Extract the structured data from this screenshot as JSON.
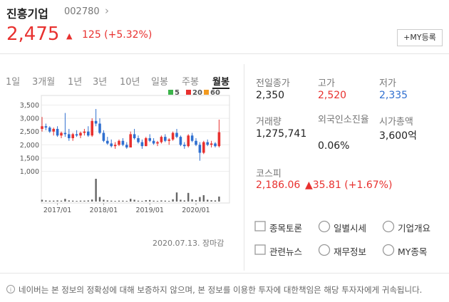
{
  "header": {
    "name": "진흥기업",
    "code": "002780",
    "arrow": "›"
  },
  "price": {
    "current": "2,475",
    "change_sign": "▲",
    "change": "125 (+5.32%)"
  },
  "my_button": "+MY등록",
  "tabs": {
    "items": [
      "1일",
      "3개월",
      "1년",
      "3년",
      "10년",
      "일봉",
      "주봉",
      "월봉"
    ],
    "active": 7
  },
  "chart_data": {
    "type": "candlestick",
    "legend": [
      {
        "name": "5",
        "color": "#3cb44b"
      },
      {
        "name": "20",
        "color": "#e8312f"
      },
      {
        "name": "60",
        "color": "#f29a1f"
      }
    ],
    "up_color": "#e8312f",
    "down_color": "#2f6fd0",
    "ylim": [
      800,
      3700
    ],
    "yticks": [
      {
        "value": 1000,
        "label": "1,000"
      },
      {
        "value": 1500,
        "label": "1,500"
      },
      {
        "value": 2000,
        "label": "2,000"
      },
      {
        "value": 2500,
        "label": "2,500"
      },
      {
        "value": 3000,
        "label": "3,000"
      },
      {
        "value": 3500,
        "label": "3,500"
      }
    ],
    "grid": true,
    "categories": [
      null,
      null,
      null,
      null,
      "2017/01",
      null,
      null,
      null,
      null,
      null,
      null,
      null,
      null,
      null,
      null,
      null,
      "2018/01",
      null,
      null,
      null,
      null,
      null,
      null,
      null,
      null,
      null,
      null,
      null,
      "2019/01",
      null,
      null,
      null,
      null,
      null,
      null,
      null,
      null,
      null,
      null,
      null,
      "2020/01",
      null,
      null,
      null,
      null,
      null,
      null
    ],
    "open": [
      2600,
      2700,
      2650,
      2500,
      2600,
      2350,
      2450,
      2400,
      2250,
      2400,
      2350,
      2450,
      2500,
      2350,
      2900,
      2800,
      2450,
      2150,
      2050,
      1950,
      2000,
      2150,
      2000,
      1900,
      2400,
      2250,
      2100,
      1950,
      2250,
      2150,
      2050,
      2100,
      2300,
      2150,
      2200,
      2450,
      2300,
      2000,
      1950,
      2350,
      2150,
      2000,
      1700,
      2100,
      2000,
      2050,
      1950
    ],
    "high": [
      3050,
      2800,
      2700,
      2650,
      2700,
      2500,
      3200,
      2600,
      2450,
      2550,
      2500,
      2600,
      2700,
      3000,
      3350,
      3000,
      2550,
      2300,
      2200,
      2100,
      2200,
      2250,
      2100,
      2500,
      2600,
      2350,
      2200,
      2300,
      2400,
      2250,
      2150,
      2350,
      2400,
      2250,
      2500,
      2600,
      2350,
      2100,
      2400,
      2450,
      2250,
      2100,
      2150,
      2200,
      2150,
      2100,
      2950
    ],
    "low": [
      2500,
      2550,
      2450,
      2350,
      2300,
      2250,
      2300,
      2150,
      2150,
      2300,
      2250,
      2350,
      2300,
      2300,
      2700,
      2400,
      2100,
      2000,
      1900,
      1850,
      1950,
      1950,
      1850,
      1900,
      2200,
      2050,
      1850,
      1950,
      2100,
      2000,
      1950,
      2050,
      2100,
      2000,
      2150,
      2250,
      1950,
      1850,
      1900,
      2100,
      1950,
      1400,
      1650,
      1950,
      1900,
      1900,
      1900
    ],
    "close": [
      2700,
      2650,
      2500,
      2600,
      2350,
      2450,
      2400,
      2250,
      2400,
      2350,
      2450,
      2500,
      2350,
      2900,
      2800,
      2450,
      2150,
      2050,
      1950,
      2000,
      2150,
      2000,
      1900,
      2400,
      2250,
      2100,
      1950,
      2250,
      2150,
      2050,
      2100,
      2300,
      2150,
      2200,
      2450,
      2300,
      2000,
      1950,
      2350,
      2150,
      2000,
      1700,
      2100,
      2000,
      2050,
      1950,
      2475
    ],
    "volume": [
      8,
      5,
      4,
      4,
      5,
      4,
      12,
      5,
      4,
      3,
      4,
      4,
      5,
      9,
      100,
      20,
      8,
      5,
      4,
      3,
      4,
      4,
      3,
      12,
      8,
      4,
      3,
      6,
      7,
      4,
      3,
      5,
      4,
      3,
      10,
      40,
      8,
      5,
      38,
      10,
      6,
      20,
      28,
      8,
      6,
      5,
      22
    ],
    "date_note": "2020.07.13. 장마감"
  },
  "stats": [
    {
      "label": "전일종가",
      "value": "2,350",
      "tone": "plain"
    },
    {
      "label": "고가",
      "value": "2,520",
      "tone": "up"
    },
    {
      "label": "저가",
      "value": "2,335",
      "tone": "down"
    },
    {
      "label": "거래량",
      "value": "1,275,741",
      "tone": "plain"
    },
    {
      "label": "외국인소진율",
      "value": "0.06%",
      "tone": "plain"
    },
    {
      "label": "시가총액",
      "value": "3,600억",
      "tone": "plain"
    }
  ],
  "index": {
    "label": "코스피",
    "value": "2,186.06",
    "change": "▲35.81 (+1.67%)"
  },
  "links": [
    "종목토론",
    "일별시세",
    "기업개요",
    "관련뉴스",
    "재무정보",
    "MY종목"
  ],
  "footer": "네이버는 본 정보의 정확성에 대해 보증하지 않으며, 본 정보를 이용한 투자에 대한책임은 해당 투자자에게 귀속됩니다."
}
